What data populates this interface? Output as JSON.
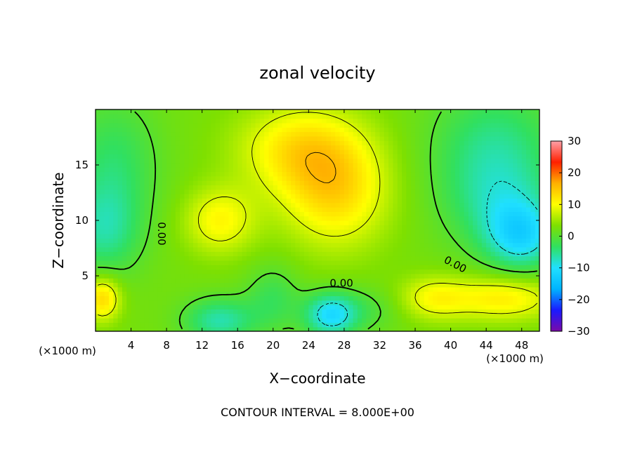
{
  "chart_data": {
    "type": "heatmap",
    "title": "zonal velocity",
    "xlabel": "X−coordinate",
    "ylabel": "Z−coordinate",
    "x_unit_left": "(×1000 m)",
    "x_unit_right": "(×1000 m)",
    "footer": "CONTOUR INTERVAL = 8.000E+00",
    "xlim": [
      0,
      50
    ],
    "ylim": [
      0,
      20
    ],
    "x_ticks": [
      {
        "value": 4,
        "label": "4"
      },
      {
        "value": 8,
        "label": "8"
      },
      {
        "value": 12,
        "label": "12"
      },
      {
        "value": 16,
        "label": "16"
      },
      {
        "value": 20,
        "label": "20"
      },
      {
        "value": 24,
        "label": "24"
      },
      {
        "value": 28,
        "label": "28"
      },
      {
        "value": 32,
        "label": "32"
      },
      {
        "value": 36,
        "label": "36"
      },
      {
        "value": 40,
        "label": "40"
      },
      {
        "value": 44,
        "label": "44"
      },
      {
        "value": 48,
        "label": "48"
      }
    ],
    "y_ticks": [
      {
        "value": 5,
        "label": "5"
      },
      {
        "value": 10,
        "label": "10"
      },
      {
        "value": 15,
        "label": "15"
      }
    ],
    "colorbar": {
      "min": -30,
      "max": 30,
      "ticks": [
        {
          "value": 30,
          "label": "30"
        },
        {
          "value": 20,
          "label": "20"
        },
        {
          "value": 10,
          "label": "10"
        },
        {
          "value": 0,
          "label": "0"
        },
        {
          "value": -10,
          "label": "−10"
        },
        {
          "value": -20,
          "label": "−20"
        },
        {
          "value": -30,
          "label": "−30"
        }
      ],
      "colors": [
        "#7a0aa8",
        "#1a1aff",
        "#00b4ff",
        "#20e0ff",
        "#30e060",
        "#7ee000",
        "#ffff00",
        "#ffb000",
        "#ff2000",
        "#ffa0a8"
      ]
    },
    "contour_interval": 8,
    "contour_labels": [
      {
        "text": "0.00",
        "x": 27.7,
        "y": 4.3,
        "rotate": 0
      },
      {
        "text": "0.00",
        "x": 40.5,
        "y": 6.0,
        "rotate": 28
      },
      {
        "text": "0.00",
        "x": 7.4,
        "y": 8.8,
        "rotate": 90
      }
    ],
    "features": [
      {
        "x": 27,
        "y": 12.5,
        "value": 10,
        "r": [
          6,
          5
        ]
      },
      {
        "x": 23,
        "y": 16.5,
        "value": 9,
        "r": [
          7,
          4
        ]
      },
      {
        "x": 14,
        "y": 10,
        "value": 8,
        "r": [
          4,
          3
        ]
      },
      {
        "x": 2,
        "y": 15,
        "value": -6,
        "r": [
          5,
          6
        ]
      },
      {
        "x": 1,
        "y": 9,
        "value": -7,
        "r": [
          4,
          4
        ]
      },
      {
        "x": 45,
        "y": 16,
        "value": -8,
        "r": [
          7,
          6
        ]
      },
      {
        "x": 48,
        "y": 8.5,
        "value": -11,
        "r": [
          4,
          3
        ]
      },
      {
        "x": 46,
        "y": 11,
        "value": -5,
        "r": [
          6,
          4
        ]
      },
      {
        "x": 26.5,
        "y": 1.5,
        "value": -13,
        "r": [
          3,
          2
        ]
      },
      {
        "x": 14,
        "y": 1.0,
        "value": -9,
        "r": [
          4,
          2
        ]
      },
      {
        "x": 20,
        "y": 3,
        "value": -5,
        "r": [
          3,
          3
        ]
      },
      {
        "x": 0.8,
        "y": 3,
        "value": 11,
        "r": [
          2,
          2
        ]
      },
      {
        "x": 46,
        "y": 3,
        "value": 9,
        "r": [
          6,
          2
        ]
      },
      {
        "x": 38,
        "y": 3,
        "value": 7,
        "r": [
          4,
          2
        ]
      },
      {
        "x": 31,
        "y": 2,
        "value": -3,
        "r": [
          4,
          2
        ]
      }
    ]
  }
}
